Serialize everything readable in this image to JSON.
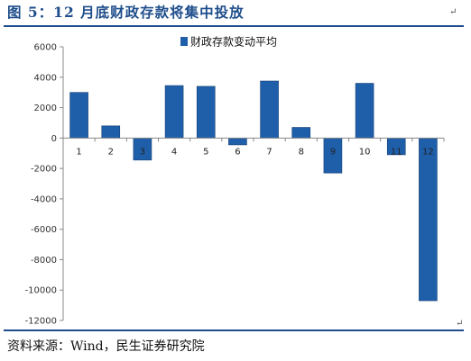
{
  "title": "图 5：12 月底财政存款将集中投放",
  "source": "资料来源：Wind，民生证券研究院",
  "marks": {
    "corner": "↵"
  },
  "colors": {
    "bar": "#1f5faa",
    "bar_edge": "#163f73",
    "accent": "#1f4e8c"
  },
  "chart_data": {
    "type": "bar",
    "title": "",
    "xlabel": "",
    "ylabel": "",
    "categories": [
      "1",
      "2",
      "3",
      "4",
      "5",
      "6",
      "7",
      "8",
      "9",
      "10",
      "11",
      "12"
    ],
    "series": [
      {
        "name": "财政存款变动平均",
        "values": [
          3000,
          800,
          -1450,
          3450,
          3400,
          -450,
          3750,
          700,
          -2300,
          3600,
          -1100,
          -10700
        ]
      }
    ],
    "ylim": [
      -12000,
      6000
    ],
    "yticks": [
      6000,
      4000,
      2000,
      0,
      -2000,
      -4000,
      -6000,
      -8000,
      -10000,
      -12000
    ],
    "grid": false,
    "legend": "top-center"
  }
}
